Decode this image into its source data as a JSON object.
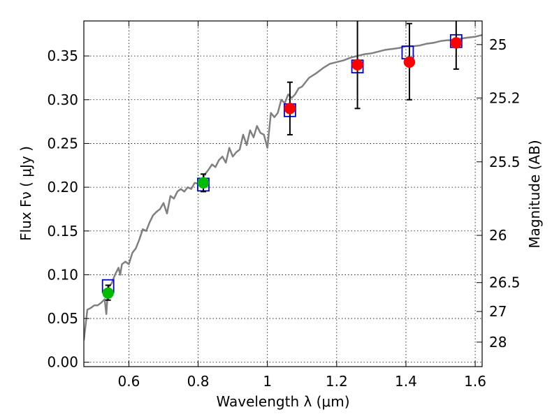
{
  "chart_data": {
    "type": "scatter",
    "xlabel": "Wavelength  λ (μm)",
    "ylabel": "Flux  Fν  ( μJy )",
    "ylabel_right": "Magnitude (AB)",
    "xlim": [
      0.47,
      1.62
    ],
    "ylim": [
      -0.005,
      0.39
    ],
    "x_ticks": [
      0.6,
      0.8,
      1.0,
      1.2,
      1.4,
      1.6
    ],
    "x_tick_labels": [
      "0.6",
      "0.8",
      "1",
      "1.2",
      "1.4",
      "1.6"
    ],
    "y_ticks": [
      0.0,
      0.05,
      0.1,
      0.15,
      0.2,
      0.25,
      0.3,
      0.35
    ],
    "y_tick_labels": [
      "0.00",
      "0.05",
      "0.10",
      "0.15",
      "0.20",
      "0.25",
      "0.30",
      "0.35"
    ],
    "right_ticks": [
      {
        "label": "25",
        "flux": 0.363
      },
      {
        "label": "25.2",
        "flux": 0.302
      },
      {
        "label": "25.5",
        "flux": 0.229
      },
      {
        "label": "26",
        "flux": 0.145
      },
      {
        "label": "26.5",
        "flux": 0.091
      },
      {
        "label": "27",
        "flux": 0.058
      },
      {
        "label": "28",
        "flux": 0.023
      }
    ],
    "grid": true,
    "series": [
      {
        "kind": "line",
        "color": "#808080",
        "x": [
          0.47,
          0.48,
          0.49,
          0.5,
          0.51,
          0.52,
          0.53,
          0.535,
          0.54,
          0.55,
          0.56,
          0.57,
          0.575,
          0.58,
          0.59,
          0.6,
          0.61,
          0.62,
          0.63,
          0.64,
          0.65,
          0.66,
          0.67,
          0.68,
          0.69,
          0.7,
          0.71,
          0.72,
          0.73,
          0.74,
          0.75,
          0.76,
          0.77,
          0.78,
          0.79,
          0.8,
          0.81,
          0.82,
          0.83,
          0.84,
          0.85,
          0.86,
          0.87,
          0.88,
          0.89,
          0.9,
          0.91,
          0.92,
          0.93,
          0.94,
          0.95,
          0.96,
          0.97,
          0.98,
          0.99,
          1.0,
          1.01,
          1.02,
          1.03,
          1.04,
          1.05,
          1.06,
          1.07,
          1.08,
          1.09,
          1.1,
          1.12,
          1.14,
          1.16,
          1.18,
          1.2,
          1.22,
          1.24,
          1.26,
          1.28,
          1.3,
          1.32,
          1.34,
          1.36,
          1.38,
          1.4,
          1.42,
          1.44,
          1.46,
          1.48,
          1.5,
          1.52,
          1.54,
          1.56,
          1.58,
          1.6,
          1.62
        ],
        "y": [
          0.025,
          0.06,
          0.062,
          0.065,
          0.065,
          0.068,
          0.072,
          0.055,
          0.085,
          0.09,
          0.1,
          0.108,
          0.1,
          0.112,
          0.115,
          0.112,
          0.125,
          0.13,
          0.14,
          0.152,
          0.15,
          0.16,
          0.168,
          0.172,
          0.175,
          0.182,
          0.17,
          0.19,
          0.187,
          0.195,
          0.198,
          0.195,
          0.2,
          0.198,
          0.205,
          0.204,
          0.207,
          0.215,
          0.22,
          0.226,
          0.223,
          0.231,
          0.235,
          0.228,
          0.245,
          0.235,
          0.24,
          0.243,
          0.26,
          0.248,
          0.265,
          0.257,
          0.27,
          0.262,
          0.26,
          0.245,
          0.285,
          0.28,
          0.285,
          0.3,
          0.296,
          0.306,
          0.302,
          0.306,
          0.313,
          0.315,
          0.325,
          0.33,
          0.336,
          0.341,
          0.343,
          0.345,
          0.348,
          0.35,
          0.352,
          0.353,
          0.355,
          0.357,
          0.358,
          0.359,
          0.361,
          0.361,
          0.362,
          0.364,
          0.365,
          0.367,
          0.368,
          0.368,
          0.37,
          0.371,
          0.372,
          0.374
        ]
      },
      {
        "kind": "squares",
        "color": "#0000cc",
        "x": [
          0.54,
          0.815,
          1.065,
          1.26,
          1.405,
          1.545
        ],
        "y": [
          0.087,
          0.203,
          0.288,
          0.338,
          0.354,
          0.367
        ]
      },
      {
        "kind": "points",
        "x": [
          0.54,
          0.815,
          1.065,
          1.26,
          1.41,
          1.545
        ],
        "y": [
          0.079,
          0.205,
          0.29,
          0.34,
          0.343,
          0.365
        ],
        "yerr_low": [
          0.071,
          0.195,
          0.26,
          0.29,
          0.3,
          0.335
        ],
        "yerr_high": [
          0.088,
          0.215,
          0.32,
          0.39,
          0.387,
          0.39
        ],
        "colors": [
          "#00bb00",
          "#00bb00",
          "#ff0000",
          "#ff0000",
          "#ff0000",
          "#ff0000"
        ]
      }
    ]
  }
}
